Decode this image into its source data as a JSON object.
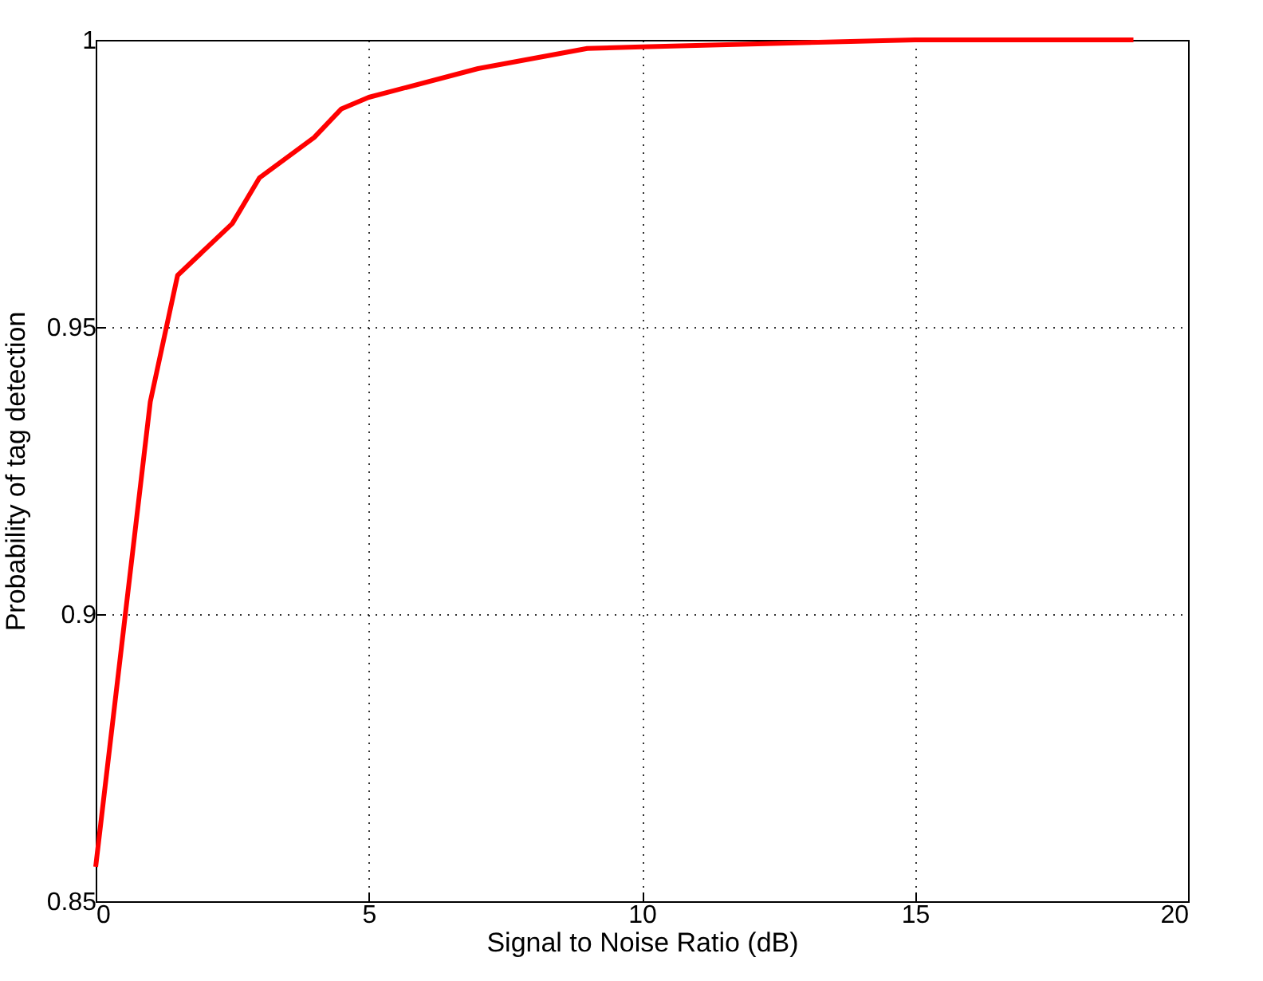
{
  "chart_data": {
    "type": "line",
    "xlabel": "Signal to Noise Ratio (dB)",
    "ylabel": "Probability of tag detection",
    "x": [
      0,
      1,
      1.5,
      2.5,
      3,
      4,
      4.5,
      5,
      7,
      9,
      10,
      15,
      19
    ],
    "series": [
      {
        "color": "#ff0000",
        "values": [
          0.856,
          0.937,
          0.959,
          0.968,
          0.976,
          0.983,
          0.988,
          0.99,
          0.995,
          0.9985,
          0.9988,
          1.0,
          1.0
        ]
      }
    ],
    "xlim": [
      0,
      20
    ],
    "xticks": [
      0,
      5,
      10,
      15,
      20
    ],
    "ylim": [
      0.85,
      1
    ],
    "yticks": [
      0.85,
      0.9,
      0.95,
      1
    ],
    "grid": true,
    "line_style": "solid",
    "marker": "none"
  }
}
